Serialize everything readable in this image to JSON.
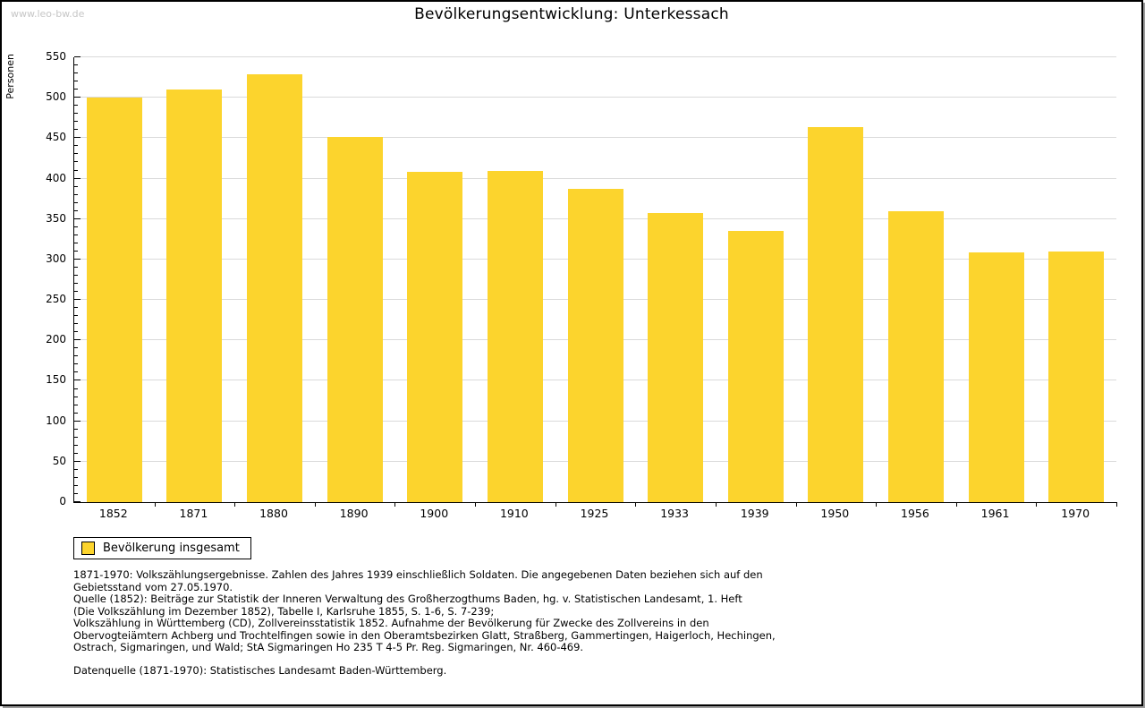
{
  "watermark": "www.leo-bw.de",
  "title": "Bevölkerungsentwicklung: Unterkessach",
  "legend": {
    "label": "Bevölkerung insgesamt"
  },
  "colors": {
    "bar": "#FCD42D",
    "grid": "#DADADA",
    "axis": "#000000",
    "watermark": "#C6C6C6"
  },
  "chart_data": {
    "type": "bar",
    "title": "Bevölkerungsentwicklung: Unterkessach",
    "categories": [
      "1852",
      "1871",
      "1880",
      "1890",
      "1900",
      "1910",
      "1925",
      "1933",
      "1939",
      "1950",
      "1956",
      "1961",
      "1970"
    ],
    "values": [
      500,
      510,
      529,
      452,
      408,
      410,
      387,
      357,
      335,
      464,
      360,
      309,
      310
    ],
    "series_name": "Bevölkerung insgesamt",
    "xlabel": "",
    "ylabel": "Personen",
    "ylim": [
      0,
      550
    ],
    "yticks": [
      0,
      50,
      100,
      150,
      200,
      250,
      300,
      350,
      400,
      450,
      500,
      550
    ],
    "y_minor_step": 10,
    "grid": true,
    "legend_position": "bottom-left",
    "bar_color": "#FCD42D"
  },
  "footnotes": {
    "lines": [
      "1871-1970: Volkszählungsergebnisse. Zahlen des Jahres 1939 einschließlich Soldaten. Die angegebenen Daten beziehen sich auf den",
      "Gebietsstand vom 27.05.1970.",
      "Quelle (1852): Beiträge zur Statistik der Inneren Verwaltung des Großherzogthums Baden, hg. v. Statistischen Landesamt, 1. Heft",
      "(Die Volkszählung im Dezember 1852), Tabelle I, Karlsruhe 1855, S. 1-6, S. 7-239;",
      "Volkszählung in Württemberg (CD), Zollvereinsstatistik 1852. Aufnahme der Bevölkerung für Zwecke des Zollvereins in den",
      "Obervogteiämtern Achberg und Trochtelfingen sowie in den Oberamtsbezirken Glatt, Straßberg, Gammertingen, Haigerloch, Hechingen,",
      "Ostrach, Sigmaringen, und Wald; StA Sigmaringen Ho 235 T 4-5 Pr. Reg. Sigmaringen, Nr. 460-469."
    ],
    "datasource": "Datenquelle (1871-1970): Statistisches Landesamt Baden-Württemberg."
  }
}
